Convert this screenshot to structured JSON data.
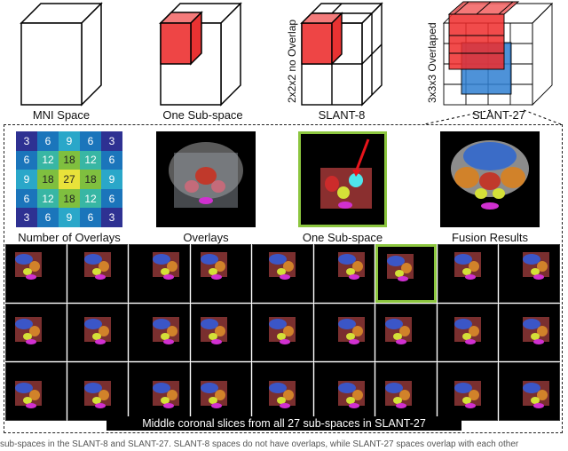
{
  "top_row": {
    "labels": [
      "MNI Space",
      "One Sub-space",
      "SLANT-8",
      "SLANT-27"
    ],
    "side_labels": [
      "2x2x2 no Overlap",
      "3x3x3 Overlaped"
    ]
  },
  "panel_labels": [
    "Number of Overlays",
    "Overlays",
    "One Sub-space",
    "Fusion Results"
  ],
  "overlay_grid": [
    [
      3,
      6,
      9,
      6,
      3
    ],
    [
      6,
      12,
      18,
      12,
      6
    ],
    [
      9,
      18,
      27,
      18,
      9
    ],
    [
      6,
      12,
      18,
      12,
      6
    ],
    [
      3,
      6,
      9,
      6,
      3
    ]
  ],
  "overlay_colors": {
    "3": "#2e3192",
    "6": "#1b75bb",
    "9": "#2aa7c9",
    "12": "#38b6a4",
    "18": "#7fbf3f",
    "27": "#e8e23a"
  },
  "bottom_caption": "Middle coronal slices from all 27 sub-spaces in SLANT-27",
  "colors": {
    "highlight": "#8cc63f",
    "red_cube": "#ee2b2b",
    "blue_cube": "#2f7fd1",
    "arrow": "#e8141b"
  },
  "figure_caption": "sub-spaces in the SLANT-8 and SLANT-27. SLANT-8 spaces do not have overlaps, while SLANT-27 spaces overlap with each other"
}
